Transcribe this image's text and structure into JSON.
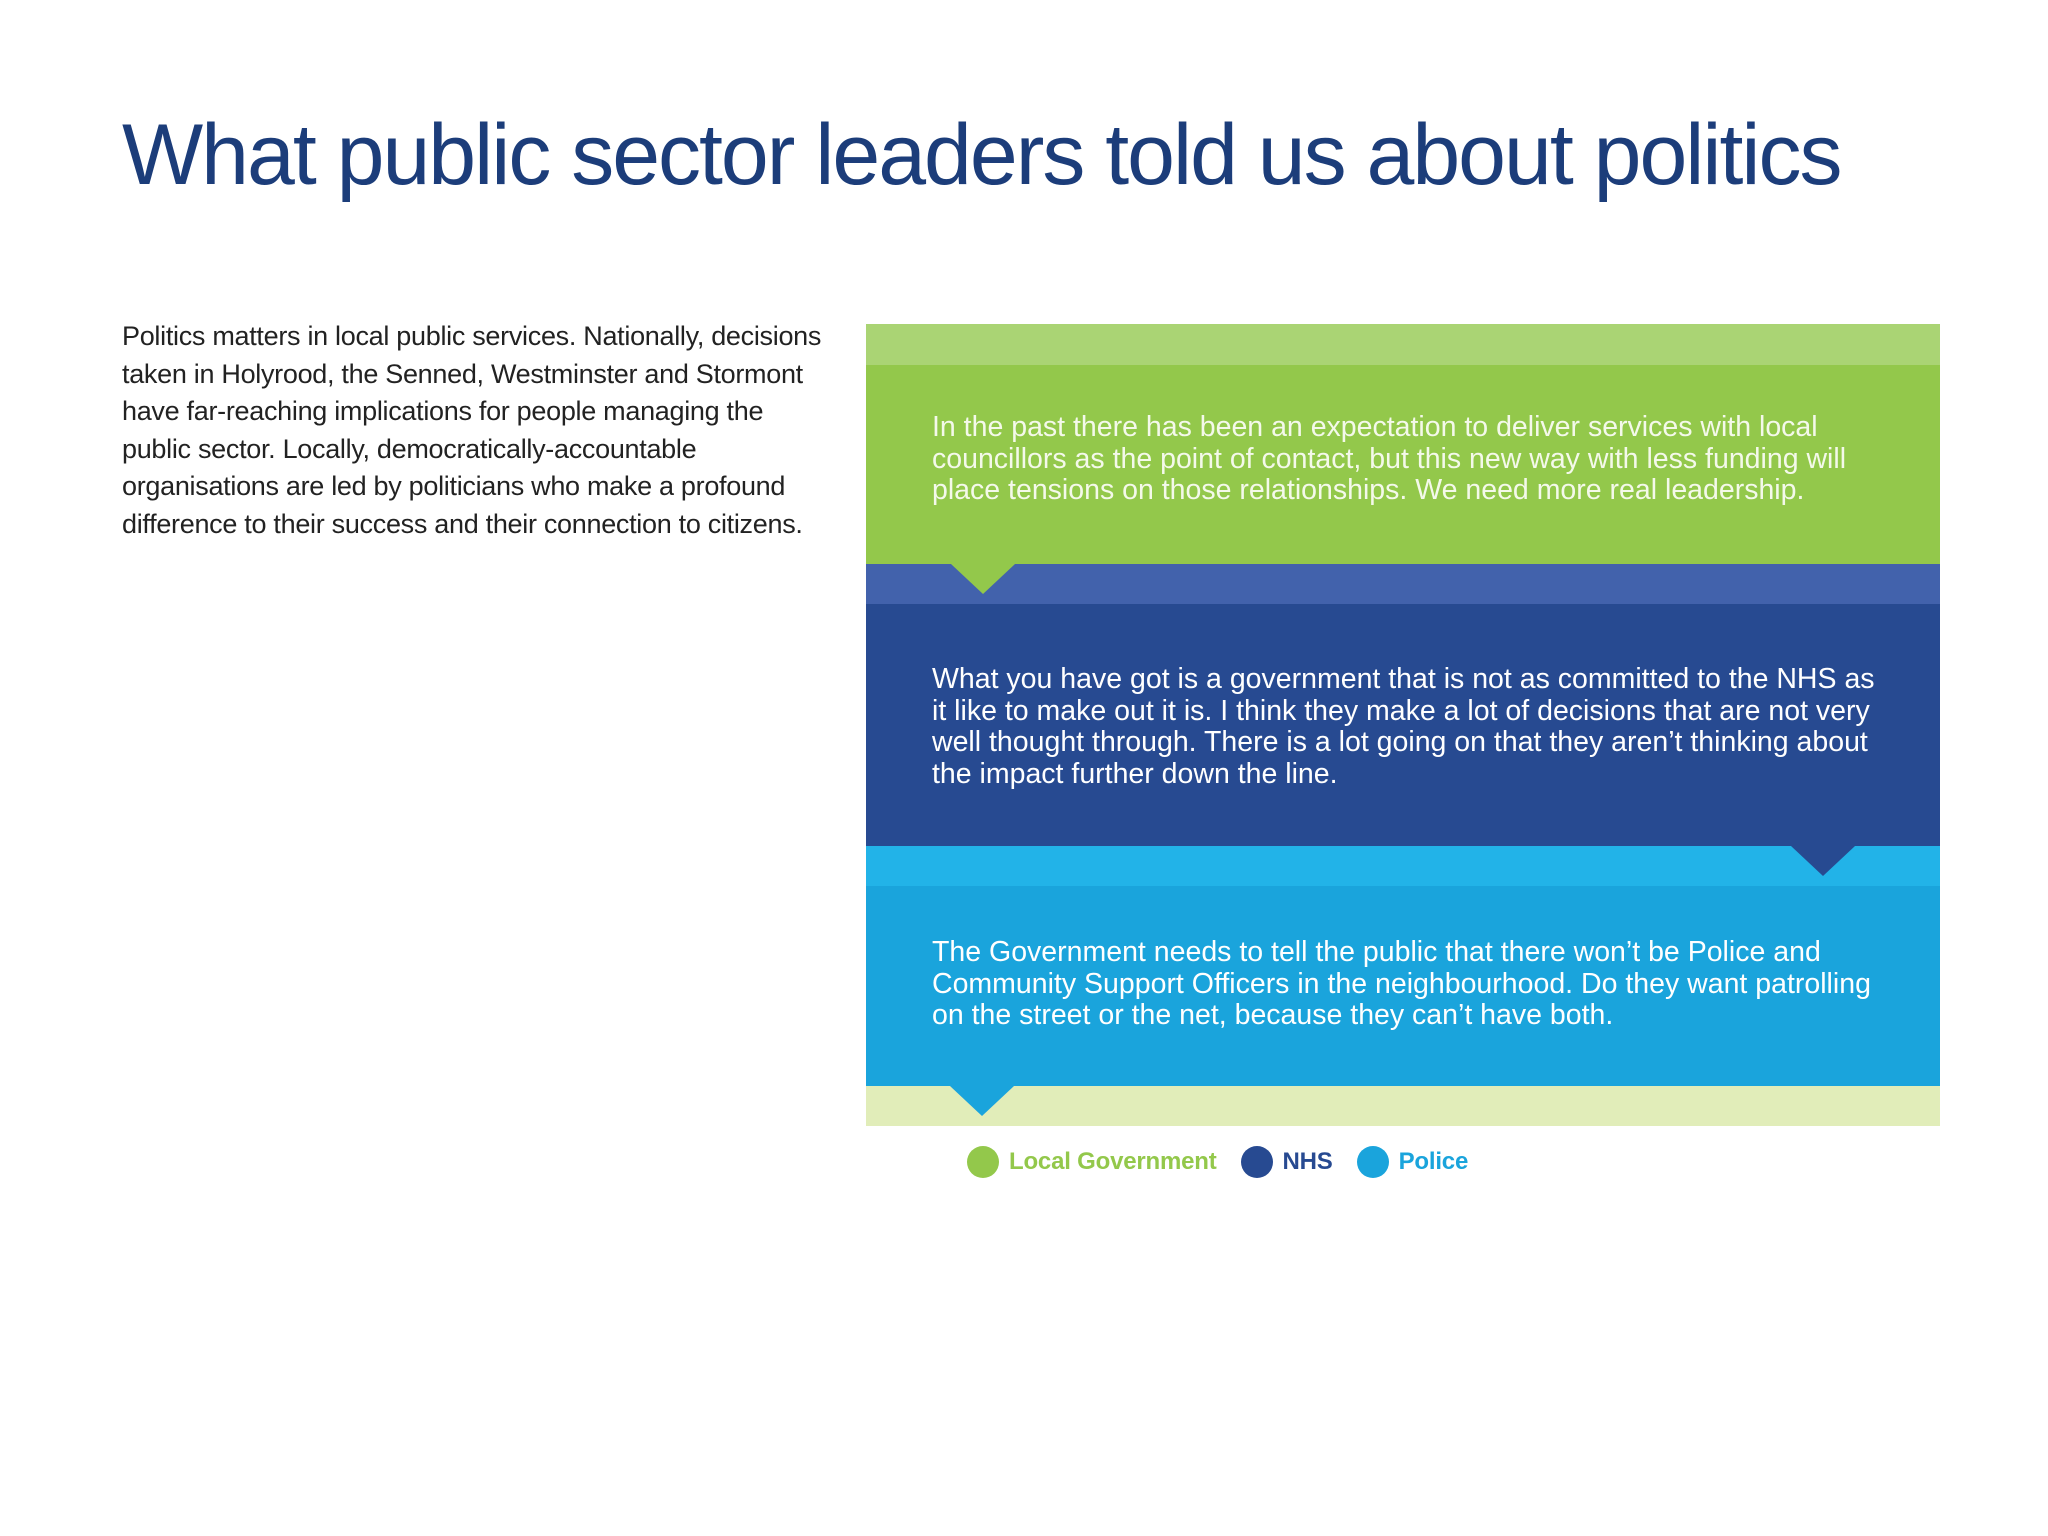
{
  "title": "What public sector leaders told us about politics",
  "intro": "Politics matters in local public services. Nationally, decisions taken in Holyrood, the Senned, Westminster and Stormont have far-reaching implications for people managing the public sector. Locally, democratically-accountable organisations are led by politicians who make a profound difference to their success and their connection to citizens.",
  "quotes": [
    {
      "sector": "local-government",
      "text": "In the past there has been an expectation to deliver services with local councillors as the point of contact, but this new way with less funding will place tensions on those relationships. We need more real leadership."
    },
    {
      "sector": "nhs",
      "text": "What you have got is a government that is not as committed to the NHS as it like to make out it is. I think they make a lot of decisions that are not very well thought through. There is a lot going on that they aren’t thinking about the impact further down the line."
    },
    {
      "sector": "police",
      "text": "The Government needs to tell the public that there won’t be Police and Community Support Officers in the neighbourhood. Do they want patrolling on the street or the net, because they can’t have both."
    }
  ],
  "legend": [
    {
      "label": "Local Government",
      "color": "#93c84b"
    },
    {
      "label": "NHS",
      "color": "#274a91"
    },
    {
      "label": "Police",
      "color": "#1aa4dc"
    }
  ],
  "colors": {
    "title": "#1c3d7a",
    "local_government": "#93c84b",
    "local_government_band": "#aad474",
    "nhs": "#274a91",
    "nhs_band": "#4262ac",
    "police": "#1aa4dc",
    "police_band": "#22b3e8",
    "bottom_band": "#e1edb9"
  }
}
